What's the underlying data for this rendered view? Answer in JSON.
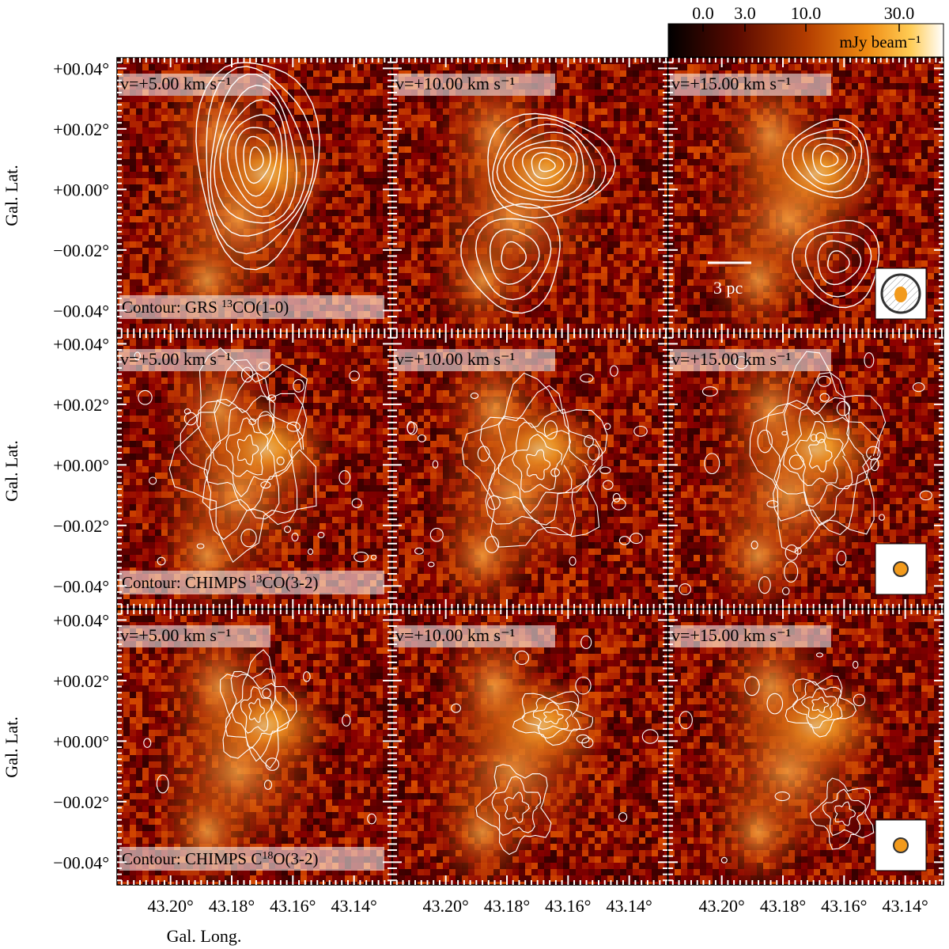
{
  "chart_data": {
    "type": "heatmap",
    "description_panels": "3x3 grid of continuum maps with line-emission contours",
    "colorbar": {
      "ticks": [
        "0.0",
        "3.0",
        "10.0",
        "30.0"
      ],
      "unit": "mJy beam⁻¹",
      "colormap": "afmhot"
    },
    "xaxis": {
      "label": "Gal. Long.",
      "ticks": [
        "43.20°",
        "43.18°",
        "43.16°",
        "43.14°"
      ],
      "tick_values": [
        43.2,
        43.18,
        43.16,
        43.14
      ]
    },
    "yaxis": {
      "label": "Gal. Lat.",
      "ticks": [
        "+00.04°",
        "+00.02°",
        "+00.00°",
        "−00.02°",
        "−00.04°"
      ],
      "tick_values": [
        0.04,
        0.02,
        0.0,
        -0.02,
        -0.04
      ]
    },
    "rows": [
      {
        "contour_label": "Contour: GRS ",
        "contour_sup": "13",
        "contour_tail": "CO(1-0)"
      },
      {
        "contour_label": "Contour: CHIMPS ",
        "contour_sup": "13",
        "contour_tail": "CO(3-2)"
      },
      {
        "contour_label": "Contour: CHIMPS C",
        "contour_sup": "18",
        "contour_tail": "O(3-2)"
      }
    ],
    "columns": [
      {
        "velocity_label": "v=+5.00 km s⁻¹",
        "velocity": 5.0
      },
      {
        "velocity_label": "v=+10.00 km s⁻¹",
        "velocity": 10.0
      },
      {
        "velocity_label": "v=+15.00 km s⁻¹",
        "velocity": 15.0
      }
    ],
    "scalebar_label": "3 pc"
  }
}
